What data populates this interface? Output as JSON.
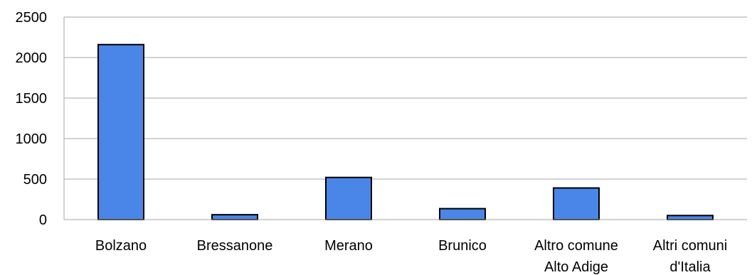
{
  "chart_data": {
    "type": "bar",
    "categories": [
      [
        "Bolzano"
      ],
      [
        "Bressanone"
      ],
      [
        "Merano"
      ],
      [
        "Brunico"
      ],
      [
        "Altro comune",
        "Alto Adige"
      ],
      [
        "Altri comuni",
        "d'Italia"
      ]
    ],
    "values": [
      2160,
      60,
      520,
      135,
      390,
      50
    ],
    "ylim": [
      0,
      2500
    ],
    "yticks": [
      "0",
      "500",
      "1000",
      "1500",
      "2000",
      "2500"
    ],
    "grid": true,
    "bar_color": "#4a86e8"
  }
}
